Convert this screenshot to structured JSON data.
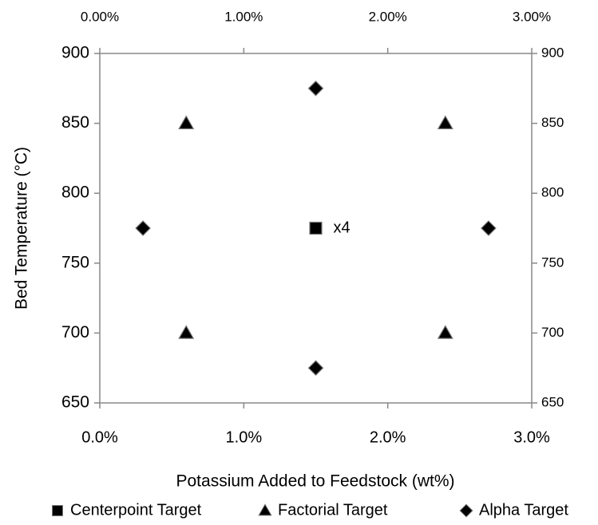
{
  "chart_data": {
    "type": "scatter",
    "x_label": "Potassium Added to Feedstock (wt%)",
    "y_label": "Bed Temperature (°C)",
    "xlim": [
      0,
      3
    ],
    "xticks": [
      {
        "value": 0,
        "label": "0.0%"
      },
      {
        "value": 1,
        "label": "1.0%"
      },
      {
        "value": 2,
        "label": "2.0%"
      },
      {
        "value": 3,
        "label": "3.0%"
      }
    ],
    "x2lim": [
      0,
      3
    ],
    "x2ticks": [
      {
        "value": 0,
        "label": "0.00%"
      },
      {
        "value": 1,
        "label": "1.00%"
      },
      {
        "value": 2,
        "label": "2.00%"
      },
      {
        "value": 3,
        "label": "3.00%"
      }
    ],
    "ylim": [
      650,
      900
    ],
    "yticks": [
      650,
      700,
      750,
      800,
      850,
      900
    ],
    "y2lim": [
      650,
      900
    ],
    "y2ticks": [
      650,
      700,
      750,
      800,
      850,
      900
    ],
    "legend": "bottom",
    "annotation": "x4",
    "series": [
      {
        "name": "Centerpoint Target",
        "marker": "square",
        "color": "#000000",
        "x": [
          1.5
        ],
        "values": [
          775
        ]
      },
      {
        "name": "Factorial Target",
        "marker": "triangle",
        "color": "#000000",
        "x": [
          0.6,
          2.4,
          0.6,
          2.4
        ],
        "values": [
          850,
          850,
          700,
          700
        ]
      },
      {
        "name": "Alpha Target",
        "marker": "diamond",
        "color": "#000000",
        "x": [
          1.5,
          1.5,
          0.3,
          2.7
        ],
        "values": [
          875,
          675,
          775,
          775
        ]
      }
    ]
  }
}
